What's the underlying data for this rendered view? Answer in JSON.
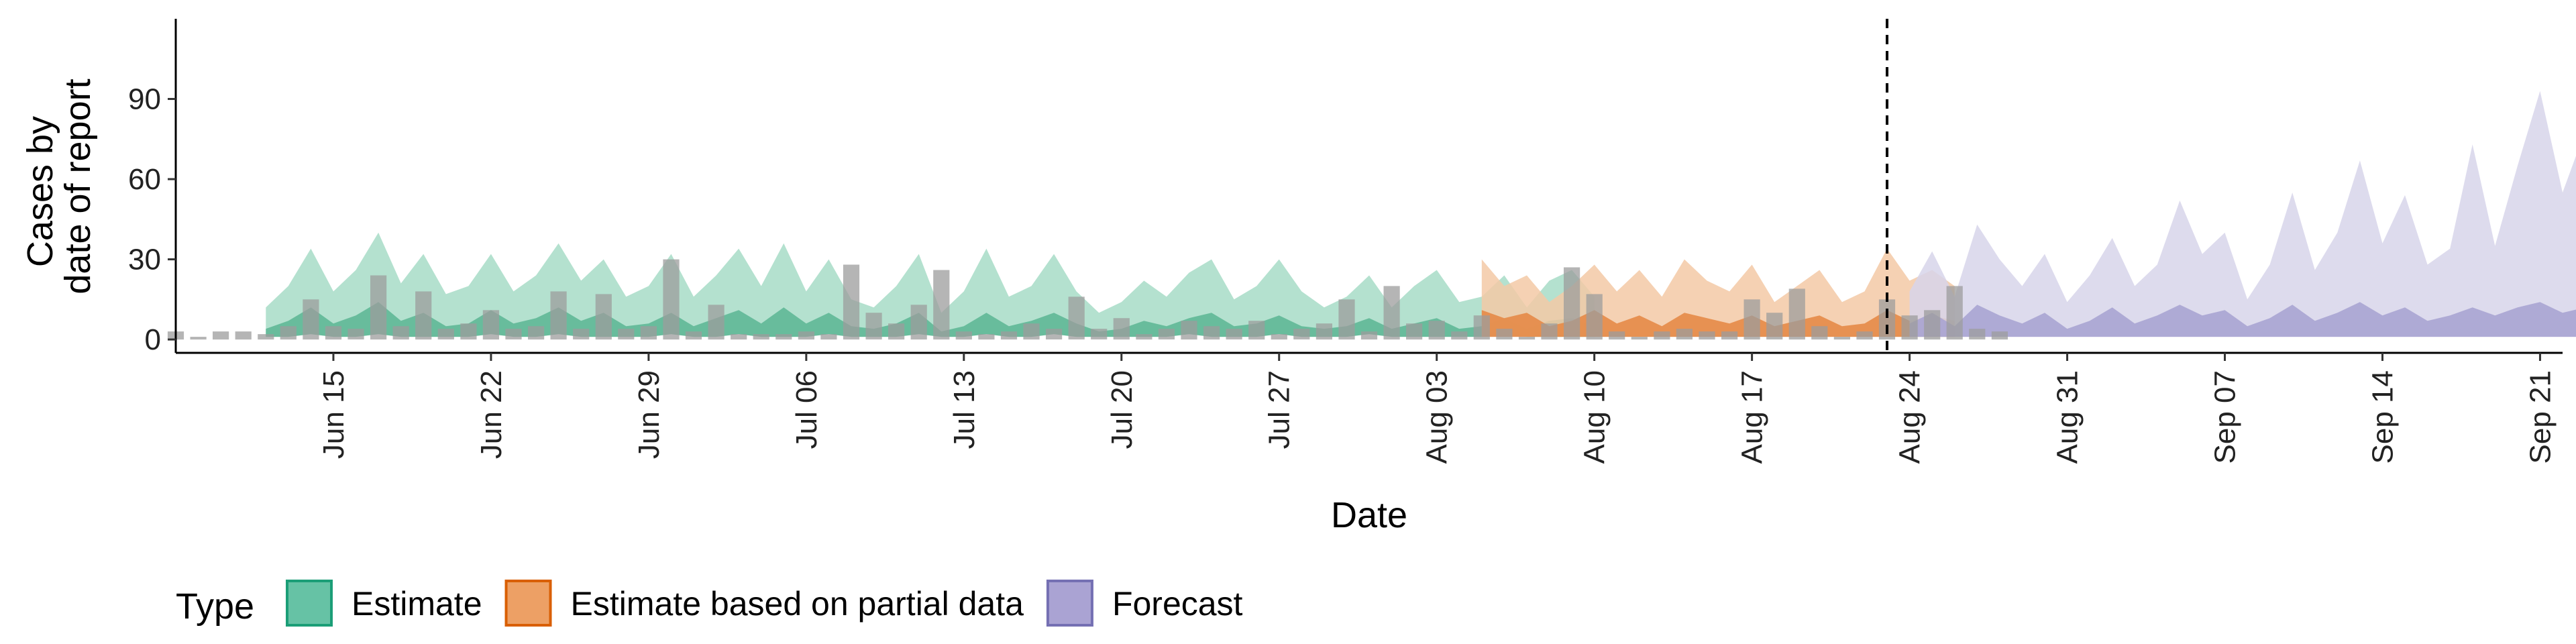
{
  "chart_data": {
    "type": "area",
    "title": "",
    "xlabel": "Date",
    "ylabel_lines": [
      "Cases by",
      "date of report"
    ],
    "x_start": "2020-06-08",
    "x_end": "2020-09-22",
    "ylim": [
      -5,
      120
    ],
    "yticks": [
      0,
      30,
      60,
      90
    ],
    "xticks": [
      {
        "date": "2020-06-15",
        "label": "Jun 15"
      },
      {
        "date": "2020-06-22",
        "label": "Jun 22"
      },
      {
        "date": "2020-06-29",
        "label": "Jun 29"
      },
      {
        "date": "2020-07-06",
        "label": "Jul 06"
      },
      {
        "date": "2020-07-13",
        "label": "Jul 13"
      },
      {
        "date": "2020-07-20",
        "label": "Jul 20"
      },
      {
        "date": "2020-07-27",
        "label": "Jul 27"
      },
      {
        "date": "2020-08-03",
        "label": "Aug 03"
      },
      {
        "date": "2020-08-10",
        "label": "Aug 10"
      },
      {
        "date": "2020-08-17",
        "label": "Aug 17"
      },
      {
        "date": "2020-08-24",
        "label": "Aug 24"
      },
      {
        "date": "2020-08-31",
        "label": "Aug 31"
      },
      {
        "date": "2020-09-07",
        "label": "Sep 07"
      },
      {
        "date": "2020-09-14",
        "label": "Sep 14"
      },
      {
        "date": "2020-09-21",
        "label": "Sep 21"
      }
    ],
    "forecast_date": "2020-08-23",
    "grid": false,
    "legend_placement": "bottom",
    "legend": {
      "title": "Type",
      "entries": [
        {
          "label": "Estimate",
          "fill": "#66c2a5",
          "stroke": "#1b9e77"
        },
        {
          "label": "Estimate based on partial data",
          "fill": "#eda065",
          "stroke": "#d95f02"
        },
        {
          "label": "Forecast",
          "fill": "#aaa3d3",
          "stroke": "#7570b3"
        }
      ]
    },
    "colors": {
      "estimate_outer": "#a7dcc7",
      "estimate_inner": "#5fb896",
      "partial_outer": "#f3c9a6",
      "partial_inner": "#e58a47",
      "forecast_outer": "#d7d5ea",
      "forecast_inner": "#a9a4d2",
      "bar": "#9c9c9c",
      "vline": "#000000"
    },
    "series": [
      {
        "name": "Estimate",
        "start": "2020-06-12",
        "upper": [
          12,
          20,
          34,
          18,
          26,
          40,
          21,
          32,
          17,
          20,
          32,
          18,
          24,
          36,
          22,
          30,
          16,
          20,
          32,
          16,
          24,
          34,
          20,
          36,
          18,
          30,
          15,
          12,
          20,
          32,
          10,
          18,
          34,
          16,
          20,
          32,
          18,
          10,
          14,
          22,
          16,
          25,
          30,
          15,
          20,
          30,
          18,
          12,
          16,
          24,
          12,
          20,
          26,
          14,
          16,
          24,
          12,
          22,
          26,
          16
        ],
        "lower": [
          1,
          1,
          2,
          1,
          1,
          2,
          1,
          1,
          1,
          1,
          2,
          1,
          1,
          2,
          1,
          1,
          1,
          1,
          2,
          1,
          1,
          2,
          1,
          1,
          1,
          2,
          1,
          1,
          1,
          2,
          1,
          1,
          2,
          1,
          1,
          2,
          1,
          1,
          1,
          1,
          1,
          2,
          1,
          1,
          1,
          2,
          1,
          1,
          1,
          2,
          1,
          1,
          1,
          1,
          1,
          2,
          1,
          1,
          1,
          1
        ],
        "median": [
          4,
          7,
          12,
          6,
          9,
          14,
          7,
          10,
          5,
          6,
          11,
          6,
          8,
          12,
          7,
          10,
          5,
          6,
          10,
          5,
          8,
          11,
          6,
          12,
          6,
          10,
          5,
          4,
          6,
          10,
          3,
          5,
          10,
          5,
          7,
          10,
          6,
          3,
          4,
          7,
          5,
          8,
          10,
          5,
          6,
          9,
          5,
          4,
          5,
          8,
          4,
          6,
          8,
          4,
          5,
          8,
          4,
          7,
          8,
          5
        ]
      },
      {
        "name": "Estimate based on partial data",
        "start": "2020-08-05",
        "upper": [
          30,
          20,
          24,
          14,
          20,
          28,
          18,
          26,
          16,
          30,
          22,
          18,
          28,
          14,
          20,
          26,
          14,
          18,
          34,
          22,
          26,
          20
        ],
        "lower": [
          1,
          1,
          1,
          1,
          1,
          1,
          1,
          1,
          1,
          1,
          1,
          1,
          1,
          1,
          1,
          1,
          1,
          1,
          1,
          1,
          1,
          1
        ],
        "median": [
          11,
          8,
          10,
          5,
          7,
          11,
          6,
          9,
          5,
          10,
          8,
          6,
          9,
          5,
          7,
          9,
          5,
          6,
          11,
          7,
          9,
          7
        ]
      },
      {
        "name": "Forecast",
        "start": "2020-08-24",
        "upper": [
          18,
          33,
          16,
          43,
          30,
          20,
          32,
          14,
          24,
          38,
          20,
          28,
          52,
          32,
          40,
          15,
          28,
          55,
          26,
          40,
          67,
          36,
          54,
          28,
          34,
          73,
          35,
          65,
          93,
          55,
          78,
          32,
          55,
          115
        ],
        "lower": [
          1,
          1,
          1,
          1,
          1,
          1,
          1,
          1,
          1,
          1,
          1,
          1,
          1,
          1,
          1,
          1,
          1,
          1,
          1,
          1,
          1,
          1,
          1,
          1,
          1,
          1,
          1,
          1,
          1,
          1,
          1,
          1,
          1,
          1
        ],
        "median": [
          6,
          10,
          5,
          13,
          9,
          6,
          10,
          4,
          7,
          12,
          6,
          9,
          13,
          9,
          11,
          5,
          8,
          13,
          7,
          10,
          14,
          9,
          12,
          7,
          9,
          12,
          9,
          12,
          14,
          10,
          12,
          6,
          8,
          14
        ]
      }
    ],
    "bars": {
      "name": "Reported cases",
      "start": "2020-06-08",
      "values": [
        3,
        1,
        3,
        3,
        2,
        5,
        15,
        5,
        4,
        24,
        5,
        18,
        4,
        6,
        11,
        4,
        5,
        18,
        4,
        17,
        4,
        5,
        30,
        3,
        13,
        2,
        2,
        2,
        3,
        2,
        28,
        10,
        6,
        13,
        26,
        3,
        2,
        3,
        6,
        4,
        16,
        4,
        8,
        2,
        4,
        7,
        5,
        4,
        7,
        2,
        4,
        6,
        15,
        3,
        20,
        6,
        7,
        3,
        9,
        4,
        1,
        6,
        27,
        17,
        3,
        1,
        3,
        4,
        3,
        3,
        15,
        10,
        19,
        5,
        1,
        3,
        15,
        9,
        11,
        20,
        4,
        3
      ]
    }
  }
}
